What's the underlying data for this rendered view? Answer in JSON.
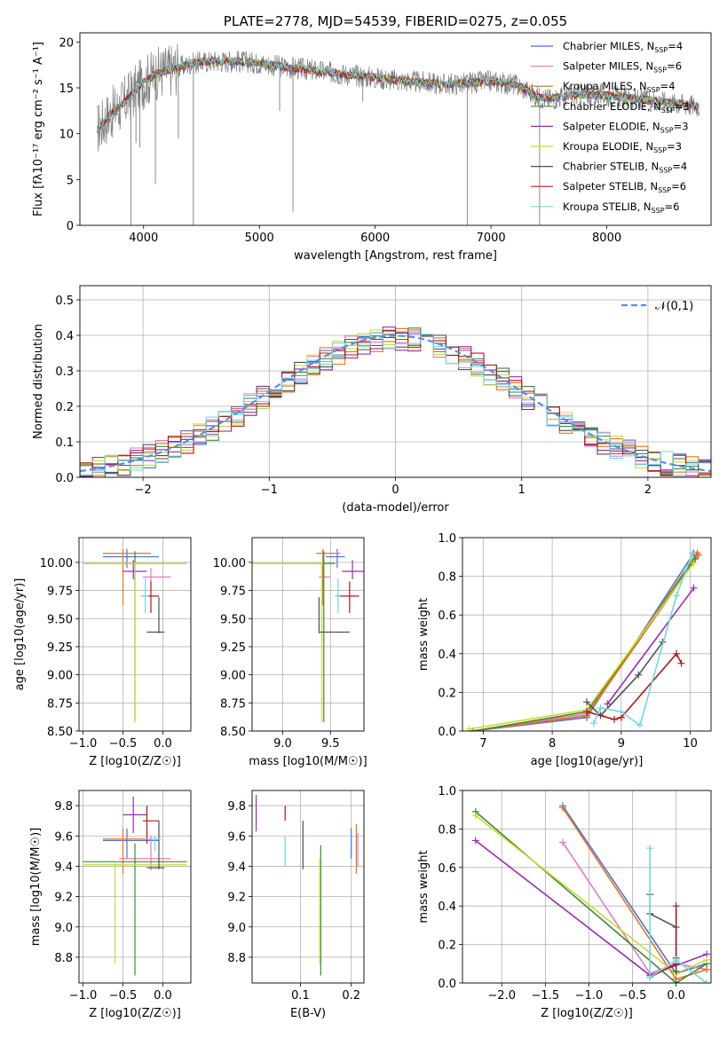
{
  "colors": {
    "Chabrier MILES": "#4c72d8",
    "Salpeter MILES": "#e07cc0",
    "Kroupa MILES": "#b07a18",
    "Chabrier ELODIE": "#3a8a3a",
    "Salpeter ELODIE": "#9a2bb0",
    "Kroupa ELODIE": "#c8dc30",
    "Chabrier STELIB": "#505050",
    "Salpeter STELIB": "#b01818",
    "Kroupa STELIB": "#70d8e0",
    "orange": "#e8731c",
    "data": "#7f7f7f",
    "normal": "#5a8fd8",
    "grid": "#b0b0b0"
  },
  "chart_data": [
    {
      "id": "spectrum",
      "type": "line",
      "title": "PLATE=2778, MJD=54539, FIBERID=0275, z=0.055",
      "xlabel": "wavelength [Angstrom, rest frame]",
      "ylabel": "Flux [fλ10⁻¹⁷ erg cm⁻² s⁻¹ A⁻¹]",
      "xlim": [
        3450,
        8900
      ],
      "ylim": [
        0,
        21
      ],
      "xticks": [
        4000,
        5000,
        6000,
        7000,
        8000
      ],
      "yticks": [
        0,
        5,
        10,
        15,
        20
      ],
      "grid": false,
      "legend_position": "top-right",
      "legend": [
        {
          "name": "Chabrier MILES",
          "nssp": "4"
        },
        {
          "name": "Salpeter MILES",
          "nssp": "6"
        },
        {
          "name": "Kroupa MILES",
          "nssp": "4"
        },
        {
          "name": "Chabrier ELODIE",
          "nssp": "3"
        },
        {
          "name": "Salpeter ELODIE",
          "nssp": "3"
        },
        {
          "name": "Kroupa ELODIE",
          "nssp": "3"
        },
        {
          "name": "Chabrier STELIB",
          "nssp": "4"
        },
        {
          "name": "Salpeter STELIB",
          "nssp": "6"
        },
        {
          "name": "Kroupa STELIB",
          "nssp": "6"
        }
      ],
      "continuum": {
        "x": [
          3600,
          3650,
          3700,
          3800,
          3900,
          4000,
          4100,
          4200,
          4300,
          4400,
          4500,
          4600,
          4800,
          5000,
          5200,
          5400,
          5600,
          5800,
          6000,
          6200,
          6400,
          6600,
          6800,
          7000,
          7200,
          7300,
          7400,
          7500,
          7600,
          7800,
          8000,
          8200,
          8400,
          8600,
          8800
        ],
        "y": [
          10.5,
          11.2,
          12.0,
          13.0,
          14.3,
          15.6,
          16.5,
          16.9,
          17.2,
          17.6,
          17.8,
          17.9,
          17.9,
          17.7,
          17.3,
          17.0,
          16.7,
          16.4,
          16.1,
          15.8,
          15.6,
          15.4,
          15.5,
          15.7,
          15.4,
          14.8,
          14.0,
          13.8,
          14.0,
          14.3,
          14.2,
          13.9,
          13.6,
          13.3,
          13.0
        ]
      },
      "dips": [
        {
          "x": 3890,
          "y": 0
        },
        {
          "x": 3934,
          "y": 9.0
        },
        {
          "x": 3968,
          "y": 8.5
        },
        {
          "x": 4102,
          "y": 4.5
        },
        {
          "x": 4300,
          "y": 9.5
        },
        {
          "x": 4430,
          "y": 0
        },
        {
          "x": 5175,
          "y": 12.5
        },
        {
          "x": 5290,
          "y": 1.5
        },
        {
          "x": 5893,
          "y": 13.5
        },
        {
          "x": 6795,
          "y": 0
        },
        {
          "x": 7420,
          "y": 0
        }
      ]
    },
    {
      "id": "residuals",
      "type": "histogram",
      "xlabel": "(data-model)/error",
      "ylabel": "Normed distribution",
      "xlim": [
        -2.5,
        2.5
      ],
      "ylim": [
        0,
        0.54
      ],
      "xticks": [
        -2,
        -1,
        0,
        1,
        2
      ],
      "yticks": [
        0.0,
        0.1,
        0.2,
        0.3,
        0.4,
        0.5
      ],
      "grid": true,
      "legend_position": "top-right",
      "normal_label": "𝒩(0,1)",
      "bin_width": 0.1
    },
    {
      "id": "age_vs_Z",
      "type": "errorbar",
      "xlabel": "Z [log10(Z/Z☉)]",
      "ylabel": "age  [log10(age/yr)]",
      "xlim": [
        -1.05,
        0.35
      ],
      "ylim": [
        8.5,
        10.22
      ],
      "xticks": [
        -1.0,
        -0.5,
        0.0
      ],
      "yticks": [
        8.5,
        8.75,
        9.0,
        9.25,
        9.5,
        9.75,
        10.0
      ],
      "grid": true,
      "points": [
        {
          "model": "Chabrier MILES",
          "x": -0.45,
          "xlo": -0.75,
          "xhi": -0.05,
          "y": 10.05,
          "ylo": 9.95,
          "yhi": 10.12
        },
        {
          "model": "Salpeter MILES",
          "x": -0.15,
          "xlo": -0.25,
          "xhi": 0.1,
          "y": 9.87,
          "ylo": 9.78,
          "yhi": 9.95
        },
        {
          "model": "orange",
          "x": -0.5,
          "xlo": -0.75,
          "xhi": -0.15,
          "y": 10.08,
          "ylo": 9.62,
          "yhi": 10.12
        },
        {
          "model": "Chabrier ELODIE",
          "x": -0.35,
          "xlo": -1.0,
          "xhi": 0.3,
          "y": 9.99,
          "ylo": 8.58,
          "yhi": 10.1
        },
        {
          "model": "Salpeter ELODIE",
          "x": -0.37,
          "xlo": -0.5,
          "xhi": -0.2,
          "y": 9.92,
          "ylo": 9.85,
          "yhi": 10.02
        },
        {
          "model": "Kroupa ELODIE",
          "x": -0.35,
          "xlo": -1.0,
          "xhi": 0.3,
          "y": 9.99,
          "ylo": 8.58,
          "yhi": 10.0
        },
        {
          "model": "Chabrier STELIB",
          "x": -0.05,
          "xlo": -0.2,
          "xhi": 0.02,
          "y": 9.38,
          "ylo": 9.37,
          "yhi": 9.69
        },
        {
          "model": "Salpeter STELIB",
          "x": -0.15,
          "xlo": -0.25,
          "xhi": -0.05,
          "y": 9.7,
          "ylo": 9.55,
          "yhi": 9.83
        },
        {
          "model": "Kroupa STELIB",
          "x": -0.22,
          "xlo": -0.28,
          "xhi": -0.18,
          "y": 9.7,
          "ylo": 9.55,
          "yhi": 9.86
        }
      ]
    },
    {
      "id": "age_vs_mass",
      "type": "errorbar",
      "xlabel": "mass [log10(M/M☉)]",
      "ylabel": "",
      "xlim": [
        8.68,
        9.85
      ],
      "ylim": [
        8.5,
        10.22
      ],
      "xticks": [
        9.0,
        9.5
      ],
      "yticks": [
        8.5,
        8.75,
        9.0,
        9.25,
        9.5,
        9.75,
        10.0
      ],
      "grid": true,
      "points": [
        {
          "model": "Chabrier MILES",
          "x": 9.57,
          "xlo": 9.45,
          "xhi": 9.65,
          "y": 10.05,
          "ylo": 9.95,
          "yhi": 10.12
        },
        {
          "model": "Salpeter MILES",
          "x": 9.42,
          "xlo": 9.38,
          "xhi": 9.5,
          "y": 9.87,
          "ylo": 9.78,
          "yhi": 9.95
        },
        {
          "model": "orange",
          "x": 9.42,
          "xlo": 9.35,
          "xhi": 9.6,
          "y": 10.08,
          "ylo": 9.62,
          "yhi": 10.12
        },
        {
          "model": "Chabrier ELODIE",
          "x": 9.43,
          "xlo": 8.68,
          "xhi": 9.55,
          "y": 9.99,
          "ylo": 8.58,
          "yhi": 10.1
        },
        {
          "model": "Salpeter ELODIE",
          "x": 9.73,
          "xlo": 9.62,
          "xhi": 9.85,
          "y": 9.92,
          "ylo": 9.85,
          "yhi": 10.02
        },
        {
          "model": "Kroupa ELODIE",
          "x": 9.41,
          "xlo": 8.68,
          "xhi": 9.42,
          "y": 9.99,
          "ylo": 8.58,
          "yhi": 10.0
        },
        {
          "model": "Chabrier STELIB",
          "x": 9.38,
          "xlo": 9.38,
          "xhi": 9.7,
          "y": 9.38,
          "ylo": 9.37,
          "yhi": 9.69
        },
        {
          "model": "Salpeter STELIB",
          "x": 9.7,
          "xlo": 9.55,
          "xhi": 9.8,
          "y": 9.7,
          "ylo": 9.55,
          "yhi": 9.83
        },
        {
          "model": "Kroupa STELIB",
          "x": 9.58,
          "xlo": 9.55,
          "xhi": 9.6,
          "y": 9.7,
          "ylo": 9.55,
          "yhi": 9.86
        }
      ]
    },
    {
      "id": "weight_vs_age",
      "type": "line",
      "xlabel": "age  [log10(age/yr)]",
      "ylabel": "mass weight",
      "xlim": [
        6.7,
        10.3
      ],
      "ylim": [
        0,
        1.0
      ],
      "xticks": [
        7,
        8,
        9,
        10
      ],
      "yticks": [
        0.0,
        0.2,
        0.4,
        0.6,
        0.8,
        1.0
      ],
      "grid": true,
      "series": [
        {
          "model": "Chabrier MILES",
          "x": [
            6.85,
            8.5,
            10.05
          ],
          "y": [
            0.0,
            0.07,
            0.92
          ]
        },
        {
          "model": "Salpeter MILES",
          "x": [
            6.85,
            8.5,
            10.08
          ],
          "y": [
            0.0,
            0.09,
            0.91
          ]
        },
        {
          "model": "Kroupa MILES",
          "x": [
            6.85,
            8.5,
            10.1
          ],
          "y": [
            0.0,
            0.08,
            0.92
          ]
        },
        {
          "model": "orange",
          "x": [
            6.85,
            8.5,
            10.12
          ],
          "y": [
            0.0,
            0.08,
            0.91
          ]
        },
        {
          "model": "Chabrier ELODIE",
          "x": [
            6.85,
            8.5,
            10.07
          ],
          "y": [
            0.0,
            0.1,
            0.89
          ]
        },
        {
          "model": "Salpeter ELODIE",
          "x": [
            8.8,
            10.05
          ],
          "y": [
            0.14,
            0.74
          ]
        },
        {
          "model": "Kroupa ELODIE",
          "x": [
            6.8,
            8.5,
            10.05
          ],
          "y": [
            0.01,
            0.11,
            0.87
          ]
        },
        {
          "model": "Chabrier STELIB",
          "x": [
            8.5,
            8.7,
            9.25,
            9.6
          ],
          "y": [
            0.15,
            0.08,
            0.29,
            0.46
          ]
        },
        {
          "model": "Salpeter STELIB",
          "x": [
            8.5,
            8.9,
            9.0,
            9.8,
            9.87
          ],
          "y": [
            0.1,
            0.06,
            0.07,
            0.4,
            0.35
          ]
        },
        {
          "model": "Kroupa STELIB",
          "x": [
            8.6,
            8.7,
            9.0,
            9.27,
            9.8,
            10.03
          ],
          "y": [
            0.04,
            0.12,
            0.1,
            0.03,
            0.7,
            0.92
          ]
        }
      ]
    },
    {
      "id": "mass_vs_Z",
      "type": "errorbar",
      "xlabel": "Z [log10(Z/Z☉)]",
      "ylabel": "mass [log10(M/M☉)]",
      "xlim": [
        -1.05,
        0.35
      ],
      "ylim": [
        8.63,
        9.9
      ],
      "xticks": [
        -1.0,
        -0.5,
        0.0
      ],
      "yticks": [
        8.8,
        9.0,
        9.2,
        9.4,
        9.6,
        9.8
      ],
      "grid": true,
      "points": [
        {
          "model": "Chabrier MILES",
          "x": -0.45,
          "xlo": -0.75,
          "xhi": -0.05,
          "y": 9.57,
          "ylo": 9.45,
          "yhi": 9.65
        },
        {
          "model": "Salpeter MILES",
          "x": -0.15,
          "xlo": -0.55,
          "xhi": 0.1,
          "y": 9.45,
          "ylo": 9.37,
          "yhi": 9.6
        },
        {
          "model": "orange",
          "x": -0.5,
          "xlo": -0.75,
          "xhi": -0.15,
          "y": 9.58,
          "ylo": 9.35,
          "yhi": 9.65
        },
        {
          "model": "Chabrier ELODIE",
          "x": -0.35,
          "xlo": -1.0,
          "xhi": 0.3,
          "y": 9.43,
          "ylo": 8.68,
          "yhi": 9.55
        },
        {
          "model": "Salpeter ELODIE",
          "x": -0.37,
          "xlo": -0.5,
          "xhi": -0.2,
          "y": 9.74,
          "ylo": 9.62,
          "yhi": 9.86
        },
        {
          "model": "Kroupa ELODIE",
          "x": -0.6,
          "xlo": -1.0,
          "xhi": 0.3,
          "y": 9.41,
          "ylo": 8.76,
          "yhi": 9.42
        },
        {
          "model": "Chabrier STELIB",
          "x": -0.05,
          "xlo": -0.2,
          "xhi": 0.02,
          "y": 9.39,
          "ylo": 9.38,
          "yhi": 9.7
        },
        {
          "model": "Salpeter STELIB",
          "x": -0.2,
          "xlo": -0.25,
          "xhi": -0.05,
          "y": 9.7,
          "ylo": 9.55,
          "yhi": 9.8
        },
        {
          "model": "Kroupa STELIB",
          "x": -0.1,
          "xlo": -0.22,
          "xhi": -0.02,
          "y": 9.58,
          "ylo": 9.5,
          "yhi": 9.6
        }
      ]
    },
    {
      "id": "mass_vs_ebv",
      "type": "errorbar",
      "xlabel": "E(B-V)",
      "ylabel": "",
      "xlim": [
        0.005,
        0.225
      ],
      "ylim": [
        8.63,
        9.9
      ],
      "xticks": [
        0.1,
        0.2
      ],
      "yticks": [
        8.8,
        9.0,
        9.2,
        9.4,
        9.6,
        9.8
      ],
      "grid": true,
      "points": [
        {
          "model": "Salpeter ELODIE",
          "x": 0.013,
          "ylo": 9.63,
          "yhi": 9.87
        },
        {
          "model": "Salpeter STELIB",
          "x": 0.07,
          "ylo": 9.7,
          "yhi": 9.8
        },
        {
          "model": "Kroupa STELIB",
          "x": 0.07,
          "ylo": 9.4,
          "yhi": 9.6
        },
        {
          "model": "Chabrier STELIB",
          "x": 0.105,
          "ylo": 9.38,
          "yhi": 9.7
        },
        {
          "model": "Chabrier ELODIE",
          "x": 0.14,
          "ylo": 8.68,
          "yhi": 9.54
        },
        {
          "model": "Kroupa ELODIE",
          "x": 0.138,
          "ylo": 8.75,
          "yhi": 9.45
        },
        {
          "model": "Chabrier MILES",
          "x": 0.2,
          "ylo": 9.45,
          "yhi": 9.65
        },
        {
          "model": "orange",
          "x": 0.21,
          "ylo": 9.35,
          "yhi": 9.68
        },
        {
          "model": "Salpeter MILES",
          "x": 0.213,
          "ylo": 9.4,
          "yhi": 9.62
        }
      ]
    },
    {
      "id": "weight_vs_Z",
      "type": "line",
      "xlabel": "Z [log10(Z/Z☉)]",
      "ylabel": "mass weight",
      "xlim": [
        -2.45,
        0.4
      ],
      "ylim": [
        0,
        1.0
      ],
      "xticks": [
        -2.0,
        -1.5,
        -1.0,
        -0.5,
        0.0
      ],
      "yticks": [
        0.0,
        0.2,
        0.4,
        0.6,
        0.8,
        1.0
      ],
      "grid": true,
      "series": [
        {
          "model": "Chabrier MILES",
          "x": [
            -1.3,
            0.0,
            0.35
          ],
          "y": [
            0.92,
            0.05,
            0.1
          ]
        },
        {
          "model": "Salpeter MILES",
          "x": [
            -1.3,
            -0.3,
            0.0,
            0.35
          ],
          "y": [
            0.73,
            0.05,
            0.1,
            0.07
          ]
        },
        {
          "model": "orange",
          "x": [
            -1.3,
            0.0,
            0.35
          ],
          "y": [
            0.91,
            0.02,
            0.07
          ]
        },
        {
          "model": "Chabrier ELODIE",
          "x": [
            -2.3,
            0.0,
            0.35
          ],
          "y": [
            0.89,
            0.0,
            0.1
          ]
        },
        {
          "model": "Salpeter ELODIE",
          "x": [
            -2.3,
            -0.3,
            0.35
          ],
          "y": [
            0.74,
            0.04,
            0.15
          ]
        },
        {
          "model": "Kroupa ELODIE",
          "x": [
            -2.3,
            0.0,
            0.35
          ],
          "y": [
            0.87,
            0.05,
            0.12
          ]
        },
        {
          "model": "Chabrier STELIB",
          "x": [
            -0.3,
            -0.3,
            0.0,
            0.0,
            0.0
          ],
          "y": [
            0.46,
            0.36,
            0.29,
            0.13,
            0.06
          ]
        },
        {
          "model": "Salpeter STELIB",
          "x": [
            -0.3,
            0.0,
            0.0
          ],
          "y": [
            0.03,
            0.1,
            0.4
          ]
        },
        {
          "model": "Kroupa STELIB",
          "x": [
            -0.3,
            -0.3,
            0.0,
            0.35
          ],
          "y": [
            0.7,
            0.03,
            0.12,
            0.0
          ]
        }
      ]
    }
  ]
}
